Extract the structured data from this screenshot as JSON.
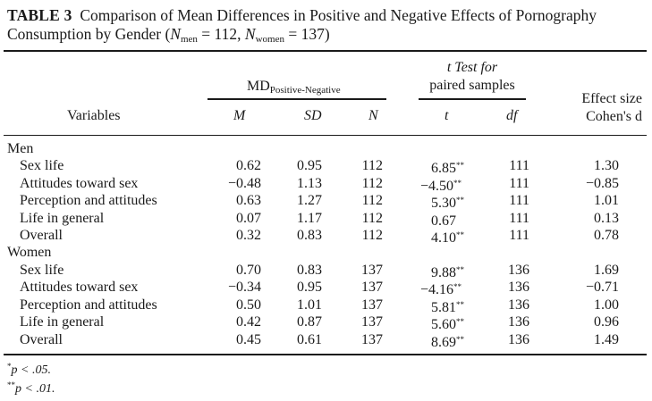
{
  "caption": {
    "label": "TABLE 3",
    "line1": "Comparison of Mean Differences in Positive and Negative Effects of Pornography",
    "line2_pre": "Consumption by Gender (",
    "n_men_sym": "N",
    "n_men_sub": "men",
    "n_men_val": " = 112, ",
    "n_women_sym": "N",
    "n_women_sub": "women",
    "n_women_val": " = 137)"
  },
  "header": {
    "md_label": "MD",
    "md_sub": "Positive-Negative",
    "ttest_line1": "t Test for",
    "ttest_line2": "paired samples",
    "effect_line1": "Effect size",
    "effect_line2": "Cohen's d",
    "col_variables": "Variables",
    "col_m": "M",
    "col_sd": "SD",
    "col_n": "N",
    "col_t": "t",
    "col_df": "df"
  },
  "groups": [
    {
      "name": "Men",
      "rows": [
        {
          "variable": "Sex life",
          "m": "0.62",
          "sd": "0.95",
          "n": "112",
          "t": "6.85",
          "t_sig": "**",
          "df": "111",
          "d": "1.30"
        },
        {
          "variable": "Attitudes toward sex",
          "m": "−0.48",
          "sd": "1.13",
          "n": "112",
          "t": "−4.50",
          "t_sig": "**",
          "df": "111",
          "d": "−0.85"
        },
        {
          "variable": "Perception and attitudes",
          "m": "0.63",
          "sd": "1.27",
          "n": "112",
          "t": "5.30",
          "t_sig": "**",
          "df": "111",
          "d": "1.01"
        },
        {
          "variable": "Life in general",
          "m": "0.07",
          "sd": "1.17",
          "n": "112",
          "t": "0.67",
          "t_sig": "",
          "df": "111",
          "d": "0.13"
        },
        {
          "variable": "Overall",
          "m": "0.32",
          "sd": "0.83",
          "n": "112",
          "t": "4.10",
          "t_sig": "**",
          "df": "111",
          "d": "0.78"
        }
      ]
    },
    {
      "name": "Women",
      "rows": [
        {
          "variable": "Sex life",
          "m": "0.70",
          "sd": "0.83",
          "n": "137",
          "t": "9.88",
          "t_sig": "**",
          "df": "136",
          "d": "1.69"
        },
        {
          "variable": "Attitudes toward sex",
          "m": "−0.34",
          "sd": "0.95",
          "n": "137",
          "t": "−4.16",
          "t_sig": "**",
          "df": "136",
          "d": "−0.71"
        },
        {
          "variable": "Perception and attitudes",
          "m": "0.50",
          "sd": "1.01",
          "n": "137",
          "t": "5.81",
          "t_sig": "**",
          "df": "136",
          "d": "1.00"
        },
        {
          "variable": "Life in general",
          "m": "0.42",
          "sd": "0.87",
          "n": "137",
          "t": "5.60",
          "t_sig": "**",
          "df": "136",
          "d": "0.96"
        },
        {
          "variable": "Overall",
          "m": "0.45",
          "sd": "0.61",
          "n": "137",
          "t": "8.69",
          "t_sig": "**",
          "df": "136",
          "d": "1.49"
        }
      ]
    }
  ],
  "footnotes": [
    {
      "sig": "*",
      "text": "p < .05."
    },
    {
      "sig": "**",
      "text": "p < .01."
    }
  ]
}
